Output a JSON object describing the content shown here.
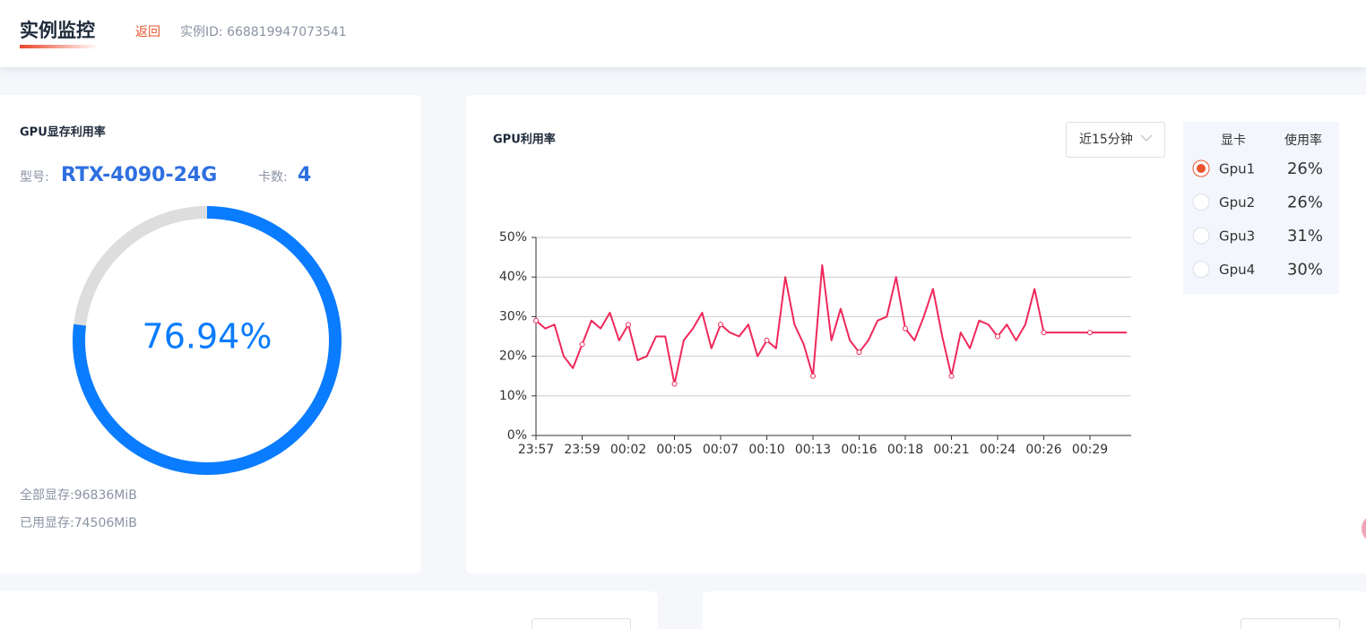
{
  "header": {
    "title": "实例监控",
    "back": "返回",
    "instance": "实例ID: 668819947073541"
  },
  "memory_card": {
    "title": "GPU显存利用率",
    "model_label": "型号:",
    "model": "RTX-4090-24G",
    "count_label": "卡数:",
    "count": "4",
    "usage": {
      "value": 76.94,
      "label": "76.94%"
    },
    "total": "全部显存:96836MiB",
    "used": "已用显存:74506MiB"
  },
  "range_select": "近15分钟",
  "gpu_table": {
    "headers": [
      "显卡",
      "使用率"
    ],
    "rows": [
      [
        "Gpu1",
        "26%"
      ],
      [
        "Gpu2",
        "26%"
      ],
      [
        "Gpu3",
        "31%"
      ],
      [
        "Gpu4",
        "30%"
      ]
    ]
  },
  "chart_data": {
    "type": "line",
    "title": "GPU利用率",
    "color": "#f0285a",
    "grid": true,
    "ylim": [
      0,
      50
    ],
    "yticks": [
      {
        "value": 0,
        "label": "0%"
      },
      {
        "value": 10,
        "label": "10%"
      },
      {
        "value": 20,
        "label": "20%"
      },
      {
        "value": 30,
        "label": "30%"
      },
      {
        "value": 40,
        "label": "40%"
      },
      {
        "value": 50,
        "label": "50%"
      }
    ],
    "categories": [
      "23:57",
      null,
      null,
      null,
      null,
      "23:59",
      null,
      null,
      null,
      null,
      "00:02",
      null,
      null,
      null,
      null,
      "00:05",
      null,
      null,
      null,
      null,
      "00:07",
      null,
      null,
      null,
      null,
      "00:10",
      null,
      null,
      null,
      null,
      "00:13",
      null,
      null,
      null,
      null,
      "00:16",
      null,
      null,
      null,
      null,
      "00:18",
      null,
      null,
      null,
      null,
      "00:21",
      null,
      null,
      null,
      null,
      "00:24",
      null,
      null,
      null,
      null,
      "00:26",
      null,
      null,
      null,
      null,
      "00:29",
      null,
      null,
      null,
      null
    ],
    "values": [
      29,
      27,
      28,
      20,
      17,
      23,
      29,
      27,
      31,
      24,
      28,
      19,
      20,
      25,
      25,
      13,
      24,
      27,
      31,
      22,
      28,
      26,
      25,
      28,
      20,
      24,
      22,
      40,
      28,
      23,
      15,
      43,
      24,
      32,
      24,
      21,
      24,
      29,
      30,
      40,
      27,
      24,
      30,
      37,
      25,
      15,
      26,
      22,
      29,
      28,
      25,
      28,
      24,
      28,
      37,
      26,
      26,
      26,
      26,
      26,
      26,
      26,
      26,
      26,
      26
    ]
  }
}
